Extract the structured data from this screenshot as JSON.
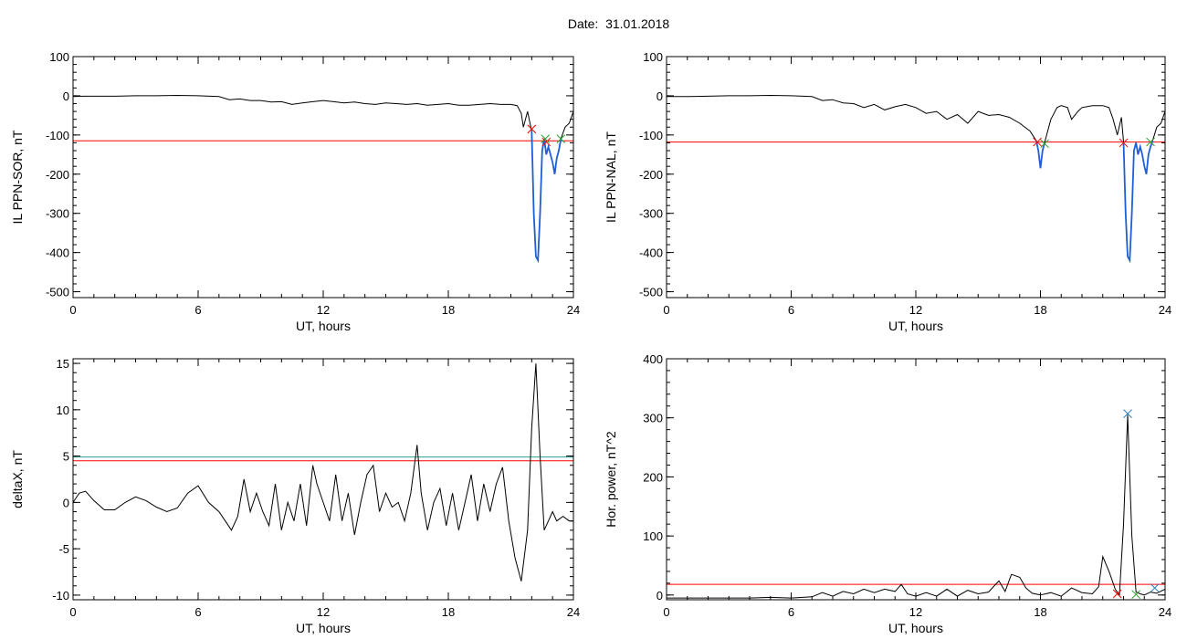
{
  "figure": {
    "date_label": "Date:",
    "date_value": "31.01.2018"
  },
  "colors": {
    "trace": "#000000",
    "threshold_red": "#ff0000",
    "threshold_teal": "#2aa198",
    "substorm_blue": "#1f5fd6",
    "marker_red": "#ff0000",
    "marker_green": "#2ca02c",
    "marker_blue": "#1f77b4"
  },
  "chart_data": [
    {
      "id": "ppn-sor",
      "type": "line",
      "xlabel": "UT, hours",
      "ylabel": "IL PPN-SOR, nT",
      "xlim": [
        0,
        24
      ],
      "ylim": [
        -515,
        100
      ],
      "xticks": [
        0,
        6,
        12,
        18,
        24
      ],
      "yticks": [
        100,
        0,
        -100,
        -200,
        -300,
        -400,
        -500
      ],
      "hlines": [
        {
          "y": -115,
          "color": "threshold_red"
        }
      ],
      "series": [
        {
          "color": "trace",
          "x": [
            0,
            0.5,
            1,
            2,
            3,
            4,
            5,
            6,
            7,
            7.5,
            8,
            8.5,
            9,
            9.5,
            10,
            10.5,
            11,
            11.5,
            12,
            12.5,
            13,
            13.5,
            14,
            14.5,
            15,
            15.5,
            16,
            16.5,
            17,
            17.5,
            18,
            18.5,
            19,
            19.5,
            20,
            20.5,
            21,
            21.3,
            21.5,
            21.6,
            21.8,
            22.0
          ],
          "y": [
            -2,
            -1,
            -1,
            -1,
            0,
            0,
            1,
            0,
            -2,
            -10,
            -8,
            -12,
            -12,
            -16,
            -15,
            -22,
            -18,
            -15,
            -12,
            -15,
            -18,
            -16,
            -20,
            -22,
            -18,
            -20,
            -22,
            -20,
            -24,
            -22,
            -20,
            -24,
            -24,
            -22,
            -20,
            -22,
            -22,
            -25,
            -45,
            -80,
            -40,
            -90
          ]
        },
        {
          "color": "substorm_blue",
          "x": [
            22.0,
            22.1,
            22.2,
            22.3,
            22.4,
            22.5,
            22.6,
            22.7,
            22.8,
            22.9,
            23.0,
            23.1,
            23.2,
            23.3,
            23.4
          ],
          "y": [
            -90,
            -300,
            -410,
            -420,
            -300,
            -140,
            -110,
            -150,
            -130,
            -150,
            -170,
            -200,
            -160,
            -140,
            -110
          ]
        },
        {
          "color": "trace",
          "x": [
            23.4,
            23.6,
            23.8,
            24.0
          ],
          "y": [
            -110,
            -80,
            -70,
            -40
          ]
        }
      ],
      "markers": [
        {
          "x": 22.0,
          "y": -85,
          "symbol": "x",
          "color": "marker_red"
        },
        {
          "x": 22.7,
          "y": -118,
          "symbol": "x",
          "color": "marker_red"
        },
        {
          "x": 22.65,
          "y": -110,
          "symbol": "x",
          "color": "marker_green"
        },
        {
          "x": 23.4,
          "y": -110,
          "symbol": "x",
          "color": "marker_green"
        }
      ]
    },
    {
      "id": "ppn-nal",
      "type": "line",
      "xlabel": "UT, hours",
      "ylabel": "IL PPN-NAL, nT",
      "xlim": [
        0,
        24
      ],
      "ylim": [
        -515,
        100
      ],
      "xticks": [
        0,
        6,
        12,
        18,
        24
      ],
      "yticks": [
        100,
        0,
        -100,
        -200,
        -300,
        -400,
        -500
      ],
      "hlines": [
        {
          "y": -118,
          "color": "threshold_red"
        }
      ],
      "series": [
        {
          "color": "trace",
          "x": [
            0,
            1,
            2,
            3,
            4,
            5,
            6,
            7,
            7.5,
            8,
            8.5,
            9,
            9.5,
            10,
            10.5,
            11,
            11.5,
            12,
            12.5,
            13,
            13.5,
            14,
            14.5,
            15,
            15.5,
            16,
            16.5,
            17,
            17.5,
            17.8
          ],
          "y": [
            -2,
            -2,
            -1,
            0,
            0,
            1,
            0,
            -2,
            -12,
            -10,
            -18,
            -20,
            -30,
            -22,
            -36,
            -28,
            -22,
            -30,
            -45,
            -40,
            -60,
            -48,
            -70,
            -40,
            -50,
            -48,
            -55,
            -70,
            -90,
            -115
          ]
        },
        {
          "color": "substorm_blue",
          "x": [
            17.8,
            17.9,
            18.0,
            18.1,
            18.2
          ],
          "y": [
            -115,
            -140,
            -185,
            -140,
            -120
          ]
        },
        {
          "color": "trace",
          "x": [
            18.2,
            18.5,
            18.8,
            19.0,
            19.3,
            19.5,
            19.8,
            20.0,
            20.5,
            21.0,
            21.3,
            21.5,
            21.7,
            21.9,
            22.0
          ],
          "y": [
            -120,
            -60,
            -30,
            -25,
            -30,
            -60,
            -40,
            -30,
            -25,
            -25,
            -30,
            -60,
            -100,
            -55,
            -118
          ]
        },
        {
          "color": "substorm_blue",
          "x": [
            22.0,
            22.1,
            22.2,
            22.3,
            22.4,
            22.5,
            22.6,
            22.7,
            22.8,
            22.9,
            23.0,
            23.1,
            23.2,
            23.3,
            23.4
          ],
          "y": [
            -118,
            -300,
            -410,
            -420,
            -300,
            -140,
            -120,
            -150,
            -130,
            -150,
            -180,
            -200,
            -150,
            -130,
            -115
          ]
        },
        {
          "color": "trace",
          "x": [
            23.4,
            23.6,
            23.8,
            24.0
          ],
          "y": [
            -115,
            -80,
            -70,
            -40
          ]
        }
      ],
      "markers": [
        {
          "x": 17.85,
          "y": -118,
          "symbol": "x",
          "color": "marker_red"
        },
        {
          "x": 18.2,
          "y": -122,
          "symbol": "x",
          "color": "marker_green"
        },
        {
          "x": 22.0,
          "y": -120,
          "symbol": "x",
          "color": "marker_red"
        },
        {
          "x": 23.3,
          "y": -118,
          "symbol": "x",
          "color": "marker_green"
        }
      ]
    },
    {
      "id": "deltax",
      "type": "line",
      "xlabel": "UT, hours",
      "ylabel": "deltaX, nT",
      "xlim": [
        0,
        24
      ],
      "ylim": [
        -10.5,
        15.5
      ],
      "xticks": [
        0,
        6,
        12,
        18,
        24
      ],
      "yticks": [
        15,
        10,
        5,
        0,
        -5,
        -10
      ],
      "hlines": [
        {
          "y": 4.9,
          "color": "threshold_teal"
        },
        {
          "y": 4.5,
          "color": "threshold_red"
        }
      ],
      "series": [
        {
          "color": "trace",
          "x": [
            0,
            0.3,
            0.6,
            1,
            1.5,
            2,
            2.5,
            3,
            3.5,
            4,
            4.5,
            5,
            5.5,
            6,
            6.5,
            7,
            7.3,
            7.6,
            7.9,
            8.2,
            8.5,
            8.8,
            9.1,
            9.4,
            9.7,
            10,
            10.3,
            10.6,
            10.9,
            11.2,
            11.5,
            11.7,
            12,
            12.3,
            12.6,
            12.9,
            13.2,
            13.5,
            13.8,
            14.1,
            14.4,
            14.7,
            15,
            15.3,
            15.6,
            15.9,
            16.2,
            16.5,
            16.7,
            17,
            17.3,
            17.6,
            17.9,
            18.2,
            18.5,
            18.8,
            19.1,
            19.4,
            19.7,
            20,
            20.3,
            20.6,
            20.9,
            21.2,
            21.5,
            21.8,
            22.0,
            22.2,
            22.4,
            22.6,
            22.8,
            23.0,
            23.2,
            23.5,
            23.8,
            24
          ],
          "y": [
            0,
            1,
            1.2,
            0.2,
            -0.8,
            -0.8,
            0,
            0.6,
            0.2,
            -0.5,
            -1,
            -0.6,
            1,
            1.8,
            0,
            -1,
            -2,
            -3,
            -1.5,
            2.5,
            -1,
            1,
            -1,
            -2.5,
            2,
            -3,
            0,
            -2,
            2,
            -2.5,
            4,
            2,
            0,
            -2,
            3,
            -2,
            1,
            -3.5,
            0,
            3,
            4,
            -1,
            1,
            -0.5,
            0,
            -2,
            1,
            6.2,
            1,
            -3,
            0,
            1.5,
            -2.5,
            1,
            -3,
            0,
            3,
            -2,
            2,
            -1,
            2,
            3.8,
            -2,
            -6,
            -8.5,
            -3,
            8,
            15,
            5,
            -3,
            -2,
            -1,
            -2,
            -1.5,
            -2,
            -2
          ]
        }
      ],
      "markers": []
    },
    {
      "id": "hor-power",
      "type": "line",
      "xlabel": "UT, hours",
      "ylabel": "Hor. power, nT^2",
      "xlim": [
        0,
        24
      ],
      "ylim": [
        -8,
        400
      ],
      "xticks": [
        0,
        6,
        12,
        18,
        24
      ],
      "yticks": [
        400,
        300,
        200,
        100,
        0
      ],
      "hlines": [
        {
          "y": 18,
          "color": "threshold_red"
        }
      ],
      "series": [
        {
          "color": "trace",
          "x": [
            0,
            1,
            2,
            3,
            4,
            5,
            6,
            7,
            7.5,
            8,
            8.5,
            9,
            9.5,
            10,
            10.5,
            11,
            11.3,
            11.6,
            12,
            12.5,
            13,
            13.5,
            14,
            14.5,
            15,
            15.5,
            16,
            16.3,
            16.6,
            17,
            17.3,
            17.6,
            18,
            18.5,
            19,
            19.5,
            20,
            20.5,
            20.8,
            21.0,
            21.3,
            21.6,
            21.8,
            22.0,
            22.2,
            22.4,
            22.6,
            22.8,
            23.0,
            23.3,
            23.6,
            24
          ],
          "y": [
            -5,
            -5,
            -5,
            -5,
            -5,
            -4,
            -5,
            -3,
            4,
            -2,
            6,
            2,
            10,
            4,
            10,
            6,
            18,
            2,
            -2,
            4,
            -2,
            10,
            -2,
            8,
            2,
            5,
            24,
            6,
            35,
            30,
            12,
            3,
            0,
            4,
            -2,
            12,
            4,
            2,
            14,
            65,
            40,
            10,
            0,
            120,
            305,
            100,
            5,
            2,
            0,
            5,
            3,
            10
          ]
        }
      ],
      "markers": [
        {
          "x": 21.7,
          "y": 2,
          "symbol": "x",
          "color": "marker_red"
        },
        {
          "x": 22.2,
          "y": 307,
          "symbol": "x",
          "color": "marker_blue"
        },
        {
          "x": 22.6,
          "y": 1,
          "symbol": "x",
          "color": "marker_green"
        },
        {
          "x": 23.5,
          "y": 12,
          "symbol": "x",
          "color": "marker_blue"
        }
      ]
    }
  ]
}
